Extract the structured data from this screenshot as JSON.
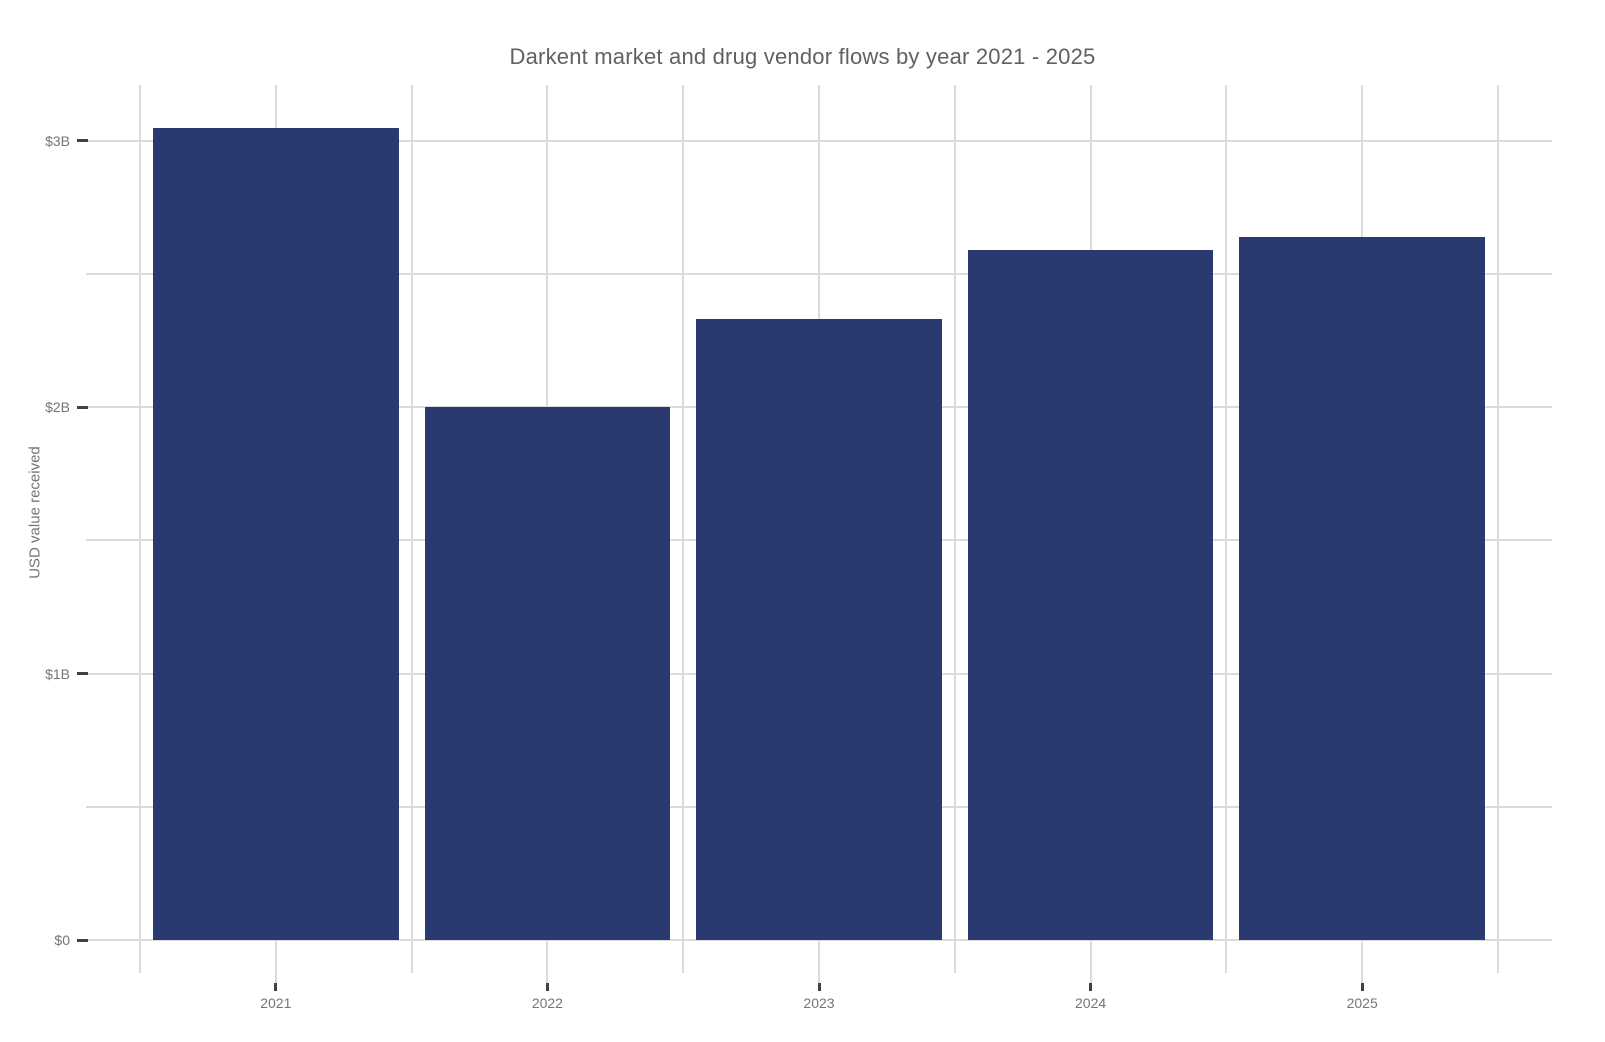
{
  "chart_data": {
    "type": "bar",
    "title": "Darkent market and drug vendor flows by year 2021 - 2025",
    "xlabel": "",
    "ylabel": "USD value received",
    "unit": "USD billions",
    "categories": [
      "2021",
      "2022",
      "2023",
      "2024",
      "2025"
    ],
    "values": [
      3.05,
      2.0,
      2.33,
      2.59,
      2.64
    ],
    "series": [
      {
        "name": "USD value received",
        "values": [
          3.05,
          2.0,
          2.33,
          2.59,
          2.64
        ]
      }
    ],
    "ylim": [
      0,
      3.21
    ],
    "ytick_step": 0.5,
    "yticks_labeled": [
      {
        "value": 0,
        "label": "$0"
      },
      {
        "value": 1,
        "label": "$1B"
      },
      {
        "value": 2,
        "label": "$2B"
      },
      {
        "value": 3,
        "label": "$3B"
      }
    ],
    "grid": true,
    "legend": "none",
    "colors": {
      "bar": "#2A3A70",
      "gridline": "#DBDBDB",
      "tick_mark": "#424242",
      "axis_text": "#757575",
      "title_text": "#616161",
      "background": "#FFFFFF"
    }
  }
}
